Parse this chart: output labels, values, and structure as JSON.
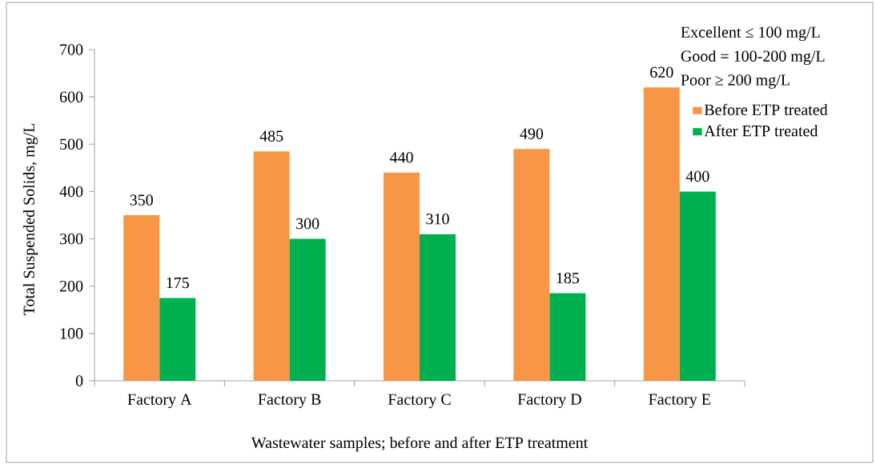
{
  "chart_data": {
    "type": "bar",
    "categories": [
      "Factory A",
      "Factory B",
      "Factory C",
      "Factory D",
      "Factory E"
    ],
    "series": [
      {
        "name": "Before ETP treated",
        "color": "#f79646",
        "values": [
          350,
          485,
          440,
          490,
          620
        ]
      },
      {
        "name": "After ETP treated",
        "color": "#00b050",
        "values": [
          175,
          300,
          310,
          185,
          400
        ]
      }
    ],
    "xlabel": "Wastewater  samples; before and after ETP treatment",
    "ylabel": "Total Suspended  Solids,  mg/L",
    "ylim": [
      0,
      700
    ],
    "yticks": [
      0,
      100,
      200,
      300,
      400,
      500,
      600,
      700
    ],
    "data_labels": true,
    "grid": false,
    "legend": "top right",
    "annotations": [
      "Excellent  ≤  100 mg/L",
      "Good  = 100-200 mg/L",
      "Poor  ≥ 200 mg/L"
    ]
  }
}
